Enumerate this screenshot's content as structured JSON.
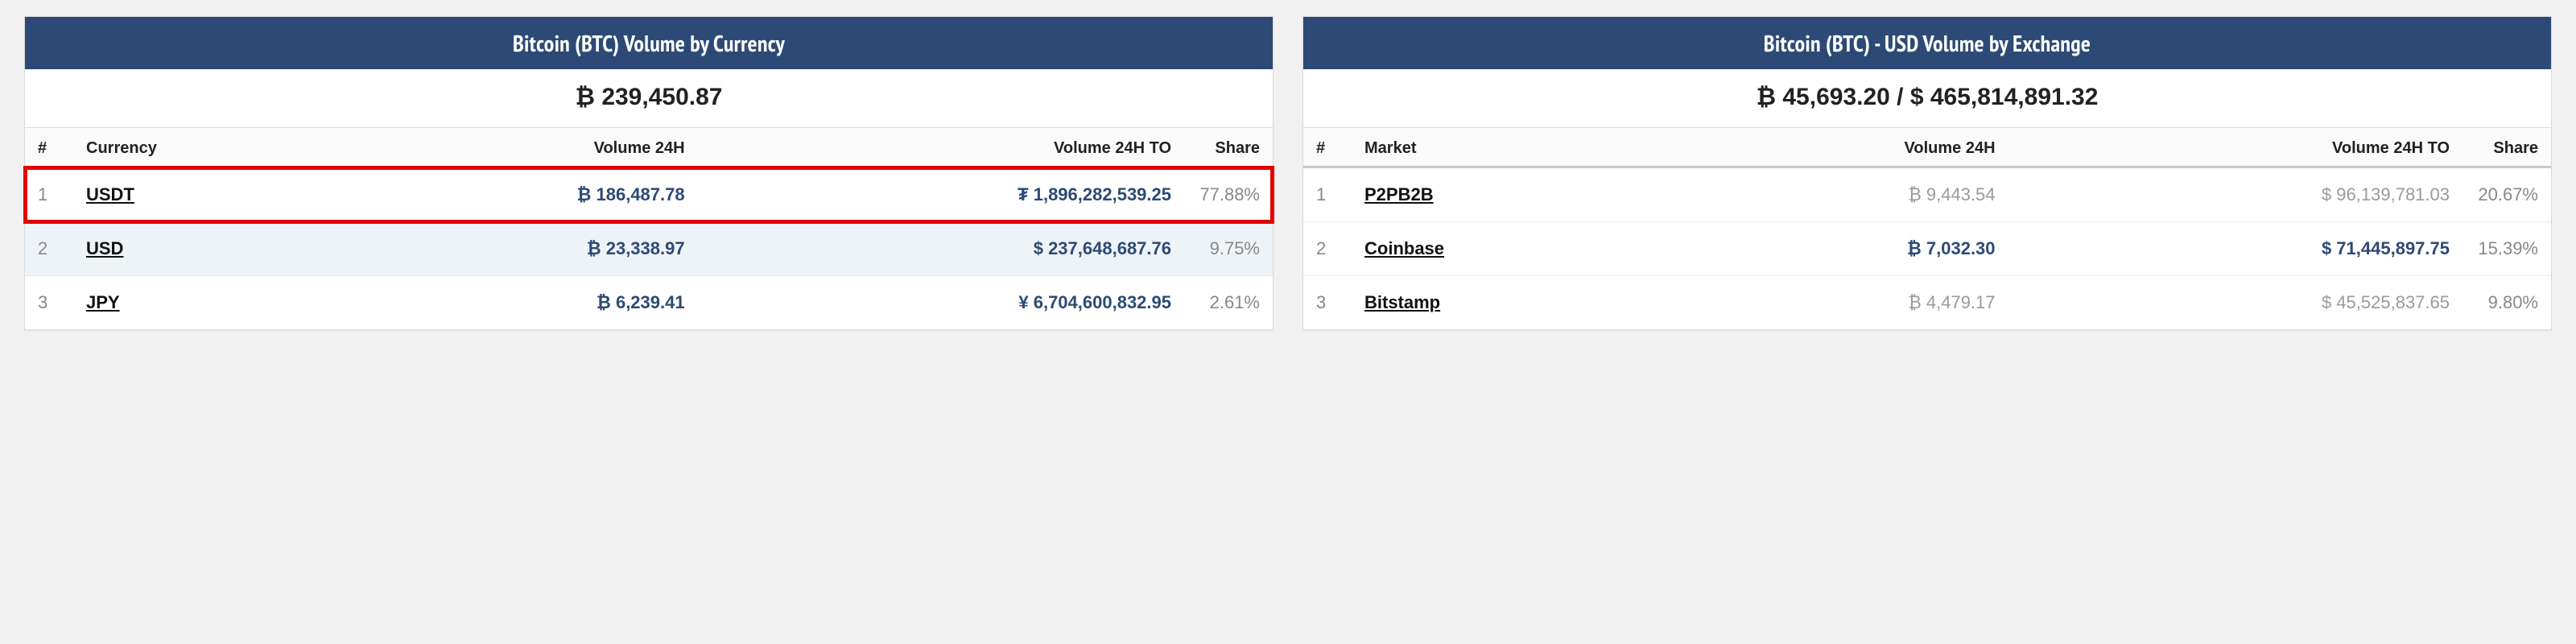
{
  "left": {
    "title": "Bitcoin (BTC) Volume by Currency",
    "total": "₿ 239,450.87",
    "columns": {
      "rank": "#",
      "name": "Currency",
      "vol": "Volume 24H",
      "volTo": "Volume 24H TO",
      "share": "Share"
    },
    "rows": [
      {
        "rank": "1",
        "name": "USDT",
        "vol": "₿ 186,487.78",
        "volTo": "₮ 1,896,282,539.25",
        "share": "77.88%",
        "highlight": true,
        "color": "blue"
      },
      {
        "rank": "2",
        "name": "USD",
        "vol": "₿ 23,338.97",
        "volTo": "$ 237,648,687.76",
        "share": "9.75%",
        "alt": true,
        "color": "blue"
      },
      {
        "rank": "3",
        "name": "JPY",
        "vol": "₿ 6,239.41",
        "volTo": "¥ 6,704,600,832.95",
        "share": "2.61%",
        "color": "blue"
      }
    ]
  },
  "right": {
    "title": "Bitcoin (BTC) - USD Volume by Exchange",
    "total": "₿ 45,693.20 / $ 465,814,891.32",
    "columns": {
      "rank": "#",
      "name": "Market",
      "vol": "Volume 24H",
      "volTo": "Volume 24H TO",
      "share": "Share"
    },
    "rows": [
      {
        "rank": "1",
        "name": "P2PB2B",
        "vol": "₿ 9,443.54",
        "volTo": "$ 96,139,781.03",
        "share": "20.67%",
        "color": "gray"
      },
      {
        "rank": "2",
        "name": "Coinbase",
        "vol": "₿ 7,032.30",
        "volTo": "$ 71,445,897.75",
        "share": "15.39%",
        "color": "blue"
      },
      {
        "rank": "3",
        "name": "Bitstamp",
        "vol": "₿ 4,479.17",
        "volTo": "$ 45,525,837.65",
        "share": "9.80%",
        "color": "gray"
      }
    ]
  }
}
